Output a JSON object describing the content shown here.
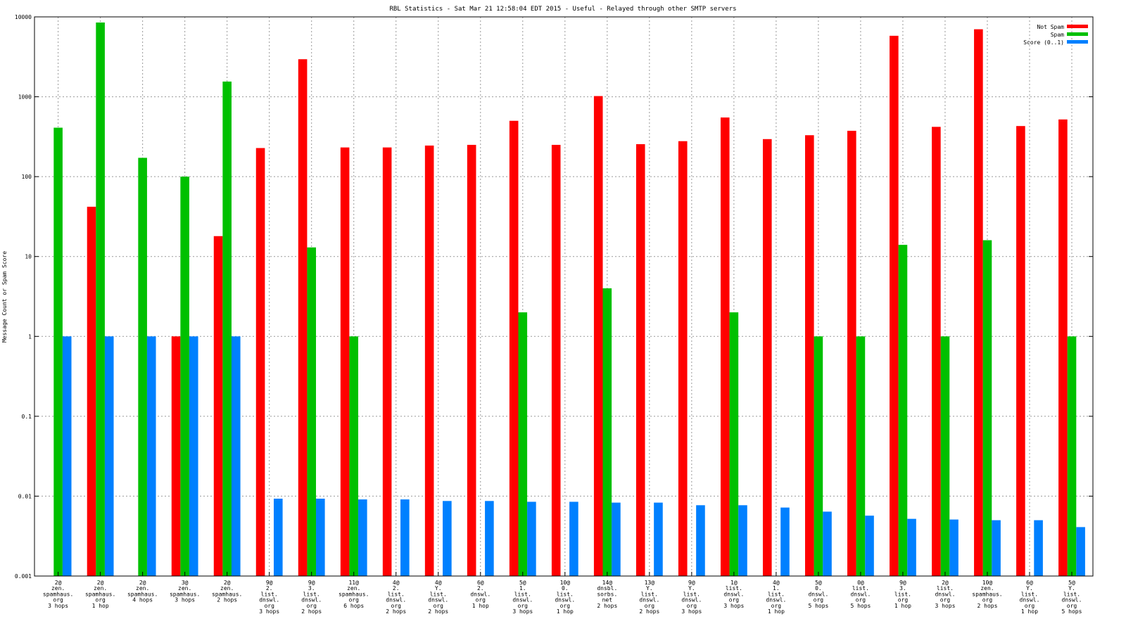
{
  "chart_data": {
    "type": "bar",
    "title": "RBL Statistics - Sat Mar 21 12:58:04 EDT 2015 - Useful - Relayed through other SMTP servers",
    "xlabel": "",
    "ylabel": "Message Count or Spam Score",
    "yscale": "log",
    "ylim": [
      0.001,
      10000
    ],
    "ytick_labels": [
      "0.001",
      "0.01",
      "0.1",
      "1",
      "10",
      "100",
      "1000",
      "10000"
    ],
    "grid": true,
    "legend_position": "top-right",
    "categories": [
      [
        "2@",
        "zen.",
        "spamhaus.",
        "org",
        "3 hops"
      ],
      [
        "2@",
        "zen.",
        "spamhaus.",
        "org",
        "1 hop"
      ],
      [
        "2@",
        "zen.",
        "spamhaus.",
        "4 hops"
      ],
      [
        "3@",
        "zen.",
        "spamhaus.",
        "3 hops"
      ],
      [
        "2@",
        "zen.",
        "spamhaus.",
        "2 hops"
      ],
      [
        "9@",
        "2.",
        "list.",
        "dnswl.",
        "org",
        "3 hops"
      ],
      [
        "9@",
        "3.",
        "list.",
        "dnswl.",
        "org",
        "2 hops"
      ],
      [
        "11@",
        "zen.",
        "spamhaus.",
        "org",
        "6 hops"
      ],
      [
        "4@",
        "2.",
        "list.",
        "dnswl.",
        "org",
        "2 hops"
      ],
      [
        "4@",
        "Y.",
        "list.",
        "dnswl.",
        "org",
        "2 hops"
      ],
      [
        "6@",
        "2.",
        "dnswl.",
        "org",
        "1 hop"
      ],
      [
        "5@",
        "1.",
        "list.",
        "dnswl.",
        "org",
        "3 hops"
      ],
      [
        "10@",
        "0.",
        "list.",
        "dnswl.",
        "org",
        "1 hop"
      ],
      [
        "14@",
        "dnsbl.",
        "sorbs.",
        "net",
        "2 hops"
      ],
      [
        "13@",
        "Y.",
        "list.",
        "dnswl.",
        "org",
        "2 hops"
      ],
      [
        "9@",
        "Y.",
        "list.",
        "dnswl.",
        "org",
        "3 hops"
      ],
      [
        "1@",
        "list.",
        "dnswl.",
        "org",
        "3 hops"
      ],
      [
        "4@",
        "1.",
        "list.",
        "dnswl.",
        "org",
        "1 hop"
      ],
      [
        "5@",
        "0.",
        "dnswl.",
        "org",
        "5 hops"
      ],
      [
        "0@",
        "list.",
        "dnswl.",
        "org",
        "5 hops"
      ],
      [
        "9@",
        "3.",
        "list.",
        "org",
        "1 hop"
      ],
      [
        "2@",
        "list.",
        "dnswl.",
        "org",
        "3 hops"
      ],
      [
        "10@",
        "zen.",
        "spamhaus.",
        "org",
        "2 hops"
      ],
      [
        "6@",
        "Y.",
        "list.",
        "dnswl.",
        "org",
        "1 hop"
      ],
      [
        "5@",
        "Y.",
        "list.",
        "dnswl.",
        "org",
        "5 hops"
      ]
    ],
    "series": [
      {
        "name": "Not Spam",
        "color": "#ff0000",
        "values": [
          null,
          42,
          null,
          1,
          18,
          228,
          2950,
          232,
          232,
          245,
          250,
          500,
          250,
          1020,
          255,
          278,
          550,
          295,
          330,
          375,
          5800,
          420,
          7000,
          430,
          520
        ]
      },
      {
        "name": "Spam",
        "color": "#00c000",
        "values": [
          410,
          8500,
          172,
          100,
          1550,
          null,
          13,
          1,
          null,
          null,
          null,
          2,
          null,
          4,
          null,
          null,
          2,
          null,
          1,
          1,
          14,
          1,
          16,
          null,
          1
        ]
      },
      {
        "name": "Score (0..1)",
        "color": "#0080ff",
        "values": [
          1,
          1,
          1,
          1,
          1,
          0.0093,
          0.0093,
          0.0091,
          0.0091,
          0.0087,
          0.0087,
          0.0085,
          0.0085,
          0.0083,
          0.0083,
          0.0077,
          0.0077,
          0.0072,
          0.0064,
          0.0057,
          0.0052,
          0.0051,
          0.005,
          0.005,
          0.0041
        ]
      }
    ]
  }
}
